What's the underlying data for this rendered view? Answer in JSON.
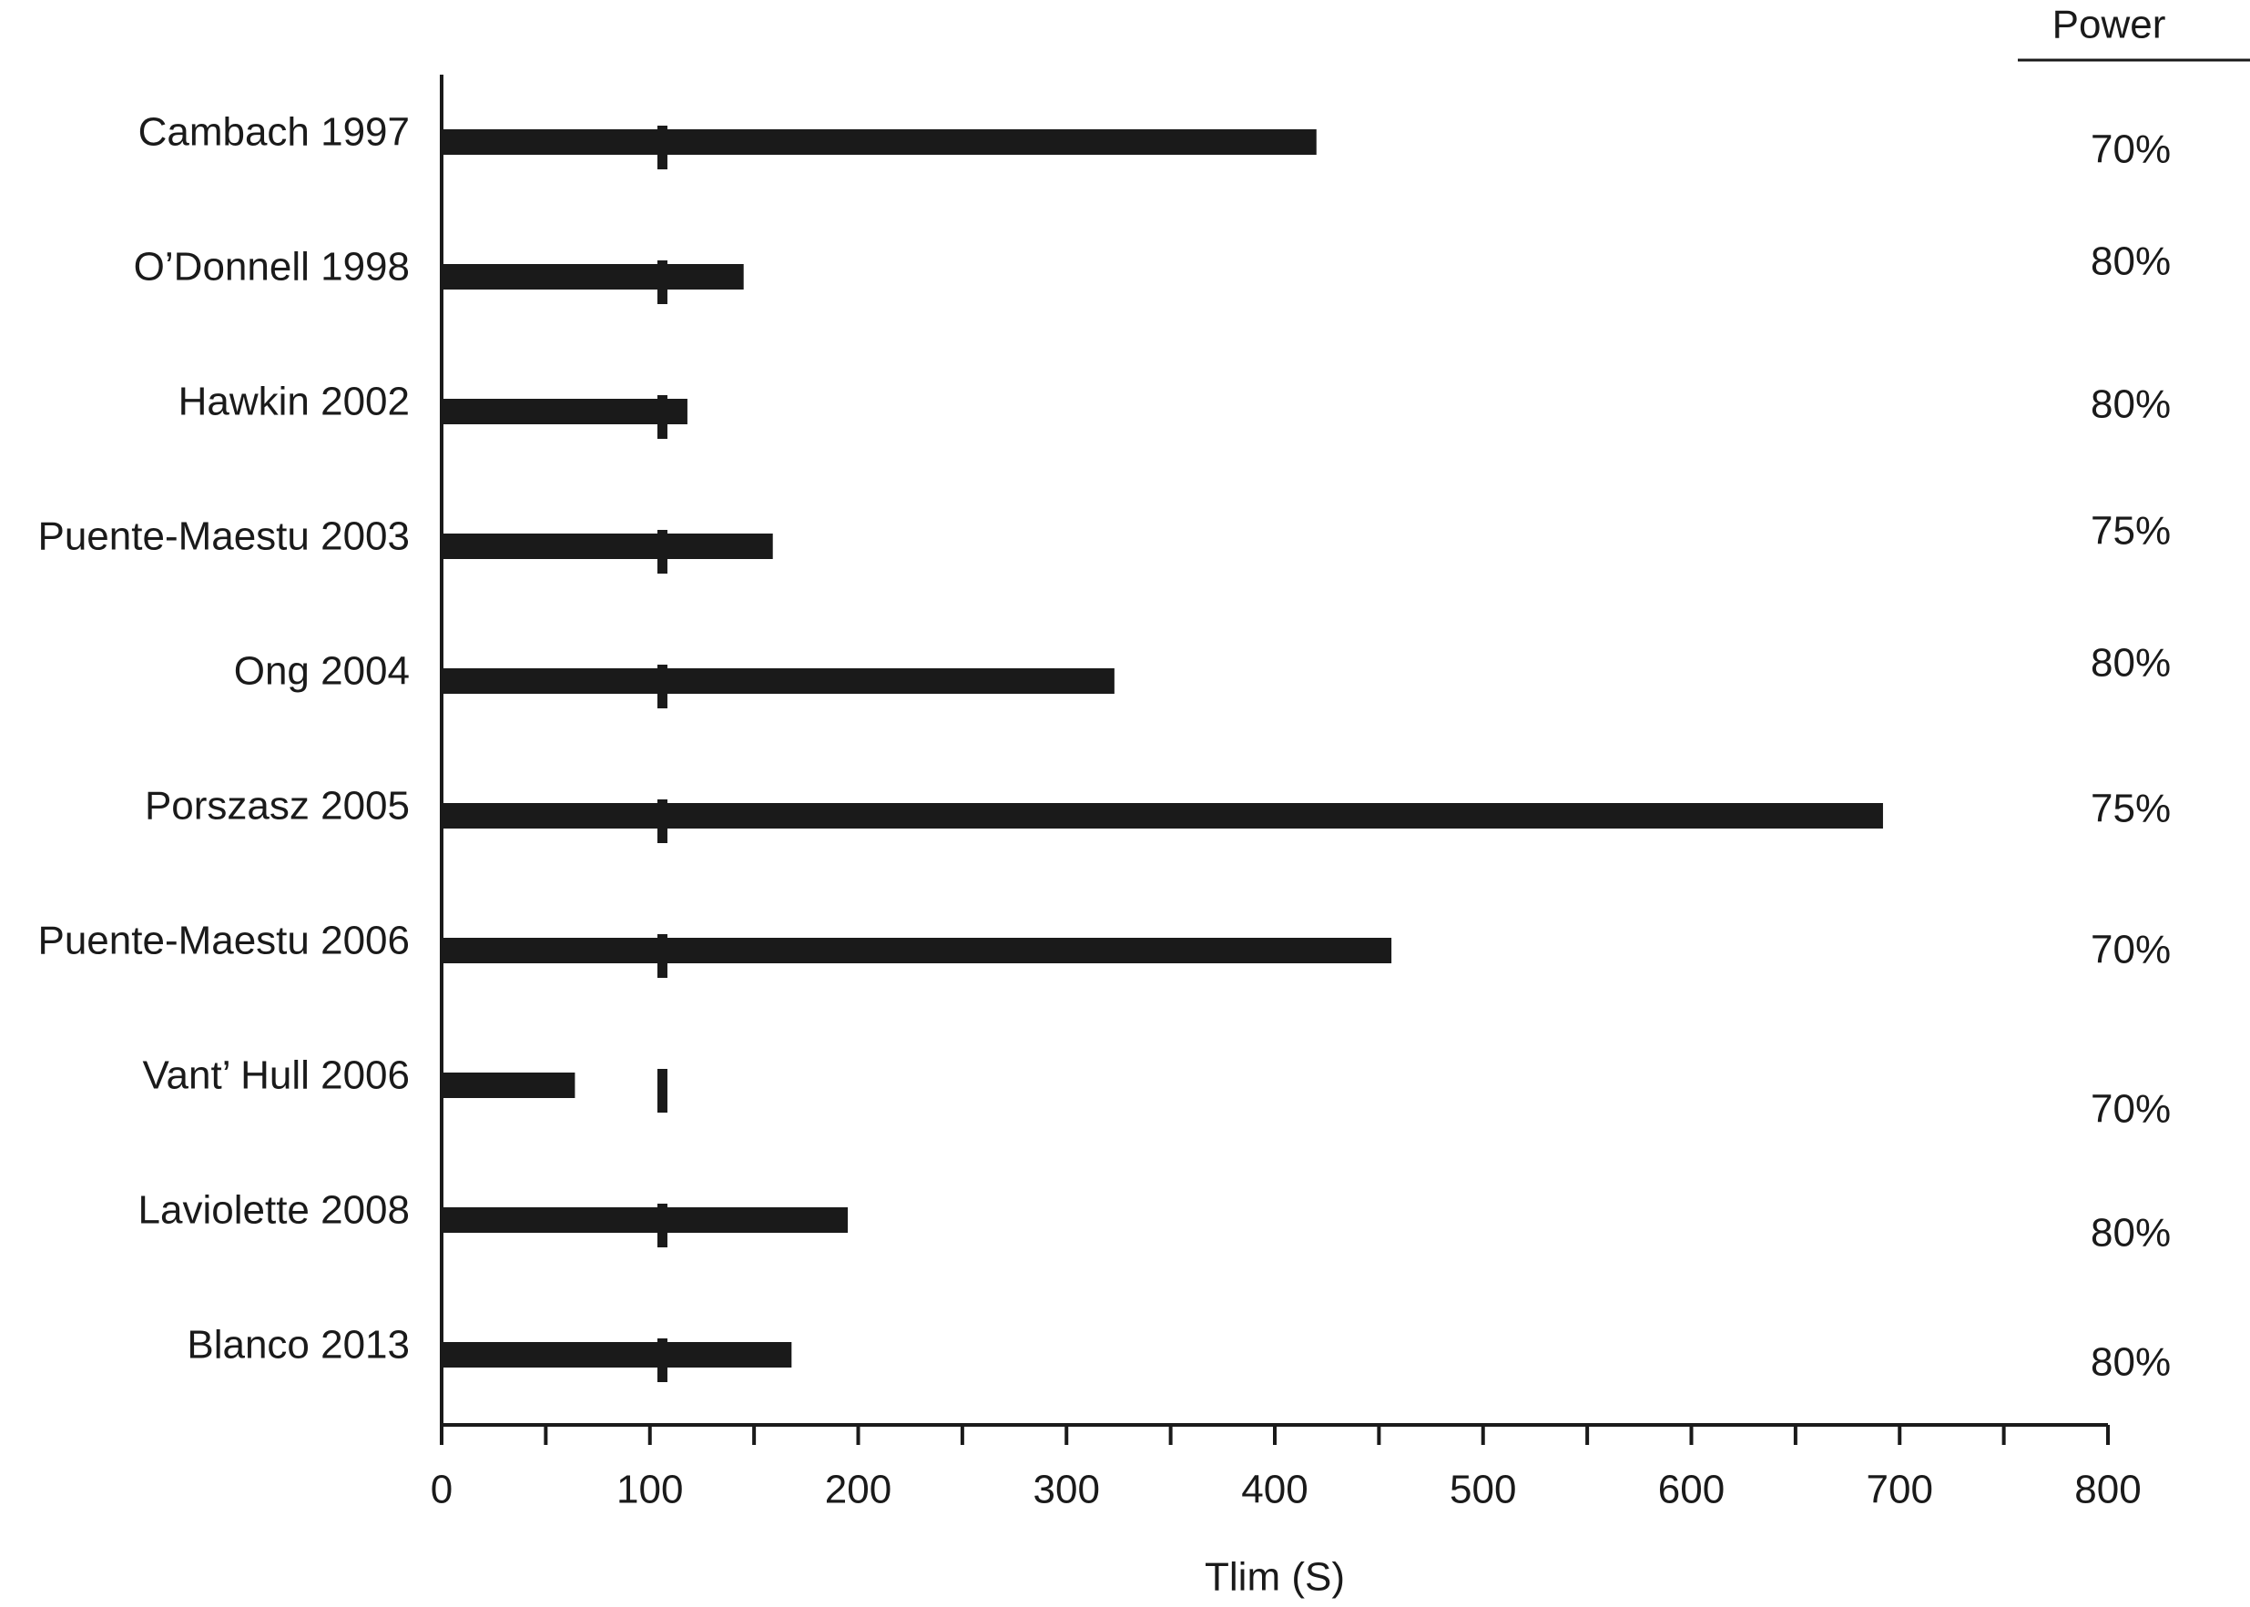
{
  "chart_data": {
    "type": "bar",
    "orientation": "horizontal",
    "categories": [
      "Cambach 1997",
      "O’Donnell 1998",
      "Hawkin 2002",
      "Puente-Maestu 2003",
      "Ong 2004",
      "Porszasz 2005",
      "Puente-Maestu 2006",
      "Vant’ Hull 2006",
      "Laviolette 2008",
      "Blanco 2013"
    ],
    "values": [
      420,
      145,
      118,
      159,
      323,
      692,
      456,
      64,
      195,
      168
    ],
    "color": "#1a1a1a",
    "xlabel": "Tlim (S)",
    "xlim": [
      0,
      800
    ],
    "xticks": [
      0,
      100,
      200,
      300,
      400,
      500,
      600,
      700,
      800
    ],
    "xticks_minor": [
      50,
      150,
      250,
      350,
      450,
      550,
      650,
      750
    ],
    "reference_x": 106,
    "power_header": "Power",
    "power": [
      "70%",
      "80%",
      "80%",
      "75%",
      "80%",
      "75%",
      "70%",
      "70%",
      "80%",
      "80%"
    ]
  }
}
